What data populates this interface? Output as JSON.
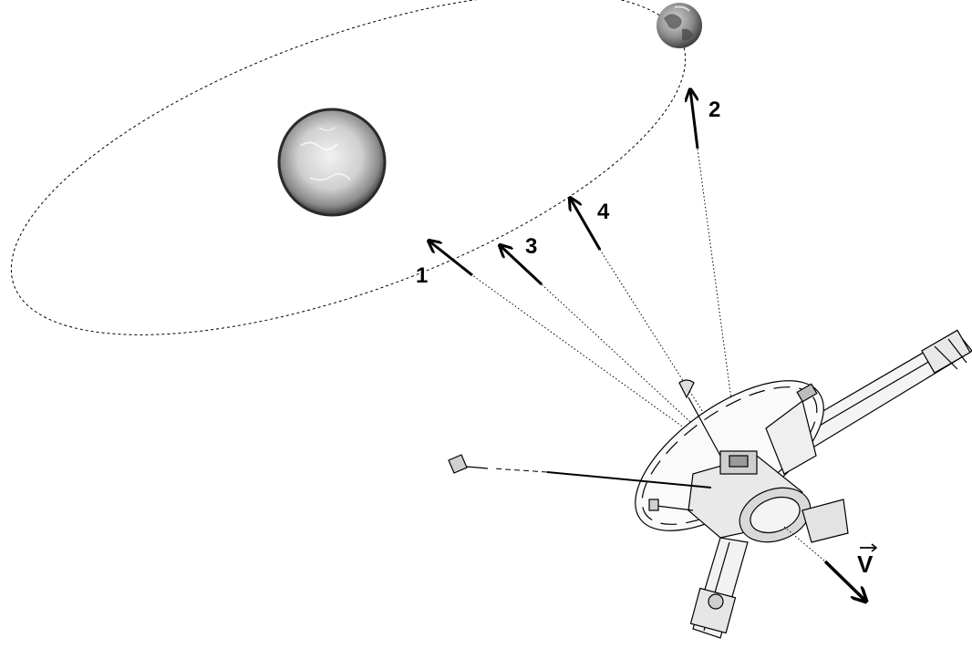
{
  "labels": {
    "arrow1": "1",
    "arrow2": "2",
    "arrow3": "3",
    "arrow4": "4",
    "velocity": "V"
  },
  "objects": {
    "sun": "sun",
    "earth": "earth",
    "orbit": "earth-orbit",
    "spacecraft": "pioneer-spacecraft"
  },
  "colors": {
    "ink": "#000000",
    "sun_core": "#e6e6e6",
    "sun_edge": "#3a3a3a",
    "earth_light": "#cfcfcf",
    "earth_dark": "#3c3c3c",
    "background": "#ffffff"
  }
}
